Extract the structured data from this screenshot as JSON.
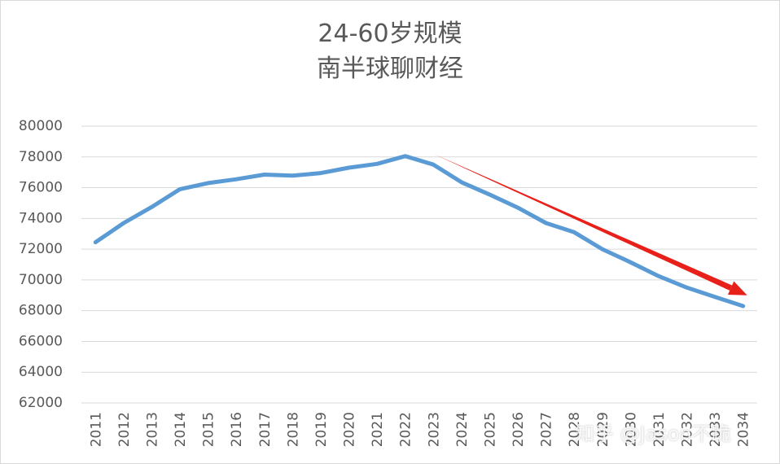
{
  "chart_data": {
    "type": "line",
    "title": "24-60岁规模",
    "subtitle": "南半球聊财经",
    "categories": [
      "2011",
      "2012",
      "2013",
      "2014",
      "2015",
      "2016",
      "2017",
      "2018",
      "2019",
      "2020",
      "2021",
      "2022",
      "2023",
      "2024",
      "2025",
      "2026",
      "2027",
      "2028",
      "2029",
      "2030",
      "2031",
      "2032",
      "2033",
      "2034"
    ],
    "series": [
      {
        "values": [
          72450,
          73700,
          74750,
          75900,
          76300,
          76550,
          76850,
          76780,
          76950,
          77300,
          77550,
          78050,
          77500,
          76350,
          75550,
          74700,
          73700,
          73100,
          72000,
          71150,
          70250,
          69500,
          68900,
          68300
        ]
      }
    ],
    "ylim": [
      62000,
      80000
    ],
    "yticks": [
      62000,
      64000,
      66000,
      68000,
      70000,
      72000,
      74000,
      76000,
      78000,
      80000
    ],
    "grid": true,
    "trend_arrow": {
      "from": {
        "x": "2023",
        "y": 78200
      },
      "to": {
        "x": "2034",
        "y": 69000
      }
    },
    "colors": {
      "line": "#5b9bd5",
      "arrow": "#e8201a",
      "grid": "#d9d9d9",
      "text": "#595959"
    }
  },
  "watermark": "知乎 @Jason不跪"
}
